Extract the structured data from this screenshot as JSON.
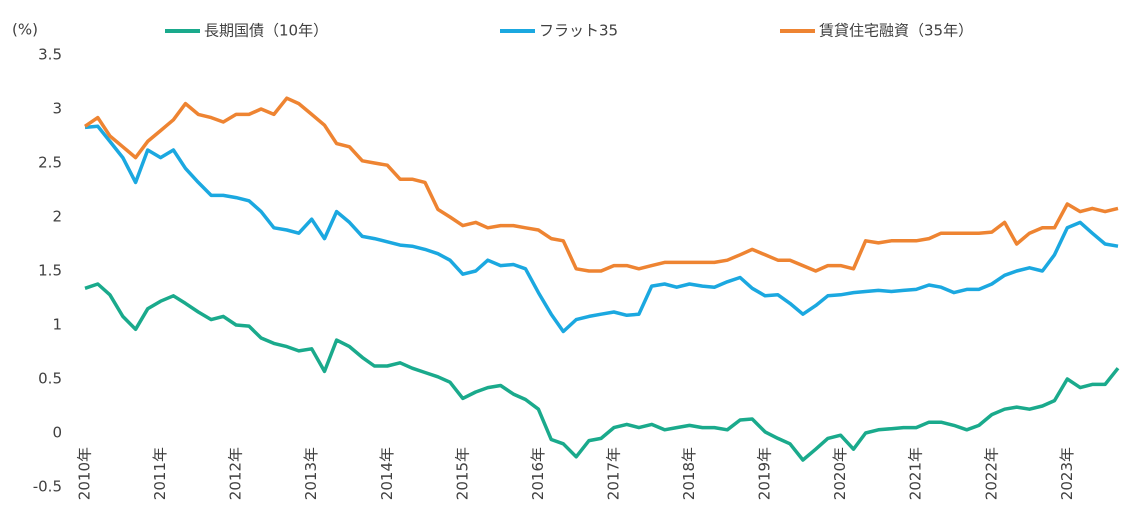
{
  "chart_data": {
    "type": "line",
    "y_label": "(%)",
    "x": [
      2010,
      2010.17,
      2010.33,
      2010.5,
      2010.67,
      2010.83,
      2011,
      2011.17,
      2011.33,
      2011.5,
      2011.67,
      2011.83,
      2012,
      2012.17,
      2012.33,
      2012.5,
      2012.67,
      2012.83,
      2013,
      2013.17,
      2013.33,
      2013.5,
      2013.67,
      2013.83,
      2014,
      2014.17,
      2014.33,
      2014.5,
      2014.67,
      2014.83,
      2015,
      2015.17,
      2015.33,
      2015.5,
      2015.67,
      2015.83,
      2016,
      2016.17,
      2016.33,
      2016.5,
      2016.67,
      2016.83,
      2017,
      2017.17,
      2017.33,
      2017.5,
      2017.67,
      2017.83,
      2018,
      2018.17,
      2018.33,
      2018.5,
      2018.67,
      2018.83,
      2019,
      2019.17,
      2019.33,
      2019.5,
      2019.67,
      2019.83,
      2020,
      2020.17,
      2020.33,
      2020.5,
      2020.67,
      2020.83,
      2021,
      2021.17,
      2021.33,
      2021.5,
      2021.67,
      2021.83,
      2022,
      2022.17,
      2022.33,
      2022.5,
      2022.67,
      2022.83,
      2023,
      2023.17,
      2023.33,
      2023.5,
      2023.67
    ],
    "series": [
      {
        "name": "長期国債（10年）",
        "color": "#1aaa8c",
        "values": [
          1.34,
          1.38,
          1.28,
          1.08,
          0.96,
          1.15,
          1.22,
          1.27,
          1.2,
          1.12,
          1.05,
          1.08,
          1.0,
          0.99,
          0.88,
          0.83,
          0.8,
          0.76,
          0.78,
          0.57,
          0.86,
          0.8,
          0.7,
          0.62,
          0.62,
          0.65,
          0.6,
          0.56,
          0.52,
          0.47,
          0.32,
          0.38,
          0.42,
          0.44,
          0.36,
          0.31,
          0.22,
          -0.06,
          -0.1,
          -0.22,
          -0.07,
          -0.05,
          0.05,
          0.08,
          0.05,
          0.08,
          0.03,
          0.05,
          0.07,
          0.05,
          0.05,
          0.03,
          0.12,
          0.13,
          0.01,
          -0.05,
          -0.1,
          -0.25,
          -0.15,
          -0.05,
          -0.02,
          -0.15,
          0.0,
          0.03,
          0.04,
          0.05,
          0.05,
          0.1,
          0.1,
          0.07,
          0.03,
          0.07,
          0.17,
          0.22,
          0.24,
          0.22,
          0.25,
          0.3,
          0.5,
          0.42,
          0.45,
          0.45,
          0.6
        ]
      },
      {
        "name": "フラット35",
        "color": "#1ba8e0",
        "values": [
          2.83,
          2.84,
          2.7,
          2.55,
          2.32,
          2.62,
          2.55,
          2.62,
          2.45,
          2.32,
          2.2,
          2.2,
          2.18,
          2.15,
          2.05,
          1.9,
          1.88,
          1.85,
          1.98,
          1.8,
          2.05,
          1.95,
          1.82,
          1.8,
          1.77,
          1.74,
          1.73,
          1.7,
          1.66,
          1.6,
          1.47,
          1.5,
          1.6,
          1.55,
          1.56,
          1.52,
          1.3,
          1.1,
          0.94,
          1.05,
          1.08,
          1.1,
          1.12,
          1.09,
          1.1,
          1.36,
          1.38,
          1.35,
          1.38,
          1.36,
          1.35,
          1.4,
          1.44,
          1.34,
          1.27,
          1.28,
          1.2,
          1.1,
          1.18,
          1.27,
          1.28,
          1.3,
          1.31,
          1.32,
          1.31,
          1.32,
          1.33,
          1.37,
          1.35,
          1.3,
          1.33,
          1.33,
          1.38,
          1.46,
          1.5,
          1.53,
          1.5,
          1.65,
          1.9,
          1.95,
          1.85,
          1.75,
          1.73
        ]
      },
      {
        "name": "賃貸住宅融資（35年）",
        "color": "#ee8432",
        "values": [
          2.84,
          2.92,
          2.75,
          2.65,
          2.55,
          2.7,
          2.8,
          2.9,
          3.05,
          2.95,
          2.92,
          2.88,
          2.95,
          2.95,
          3.0,
          2.95,
          3.1,
          3.05,
          2.95,
          2.85,
          2.68,
          2.65,
          2.52,
          2.5,
          2.48,
          2.35,
          2.35,
          2.32,
          2.07,
          2.0,
          1.92,
          1.95,
          1.9,
          1.92,
          1.92,
          1.9,
          1.88,
          1.8,
          1.78,
          1.52,
          1.5,
          1.5,
          1.55,
          1.55,
          1.52,
          1.55,
          1.58,
          1.58,
          1.58,
          1.58,
          1.58,
          1.6,
          1.65,
          1.7,
          1.65,
          1.6,
          1.6,
          1.55,
          1.5,
          1.55,
          1.55,
          1.52,
          1.78,
          1.76,
          1.78,
          1.78,
          1.78,
          1.8,
          1.85,
          1.85,
          1.85,
          1.85,
          1.86,
          1.95,
          1.75,
          1.85,
          1.9,
          1.9,
          2.12,
          2.05,
          2.08,
          2.05,
          2.08
        ]
      }
    ],
    "xlim": [
      2010,
      2023.75
    ],
    "xticks": [
      {
        "value": 2010,
        "label": "2010年"
      },
      {
        "value": 2011,
        "label": "2011年"
      },
      {
        "value": 2012,
        "label": "2012年"
      },
      {
        "value": 2013,
        "label": "2013年"
      },
      {
        "value": 2014,
        "label": "2014年"
      },
      {
        "value": 2015,
        "label": "2015年"
      },
      {
        "value": 2016,
        "label": "2016年"
      },
      {
        "value": 2017,
        "label": "2017年"
      },
      {
        "value": 2018,
        "label": "2018年"
      },
      {
        "value": 2019,
        "label": "2019年"
      },
      {
        "value": 2020,
        "label": "2020年"
      },
      {
        "value": 2021,
        "label": "2021年"
      },
      {
        "value": 2022,
        "label": "2022年"
      },
      {
        "value": 2023,
        "label": "2023年"
      }
    ],
    "ylim": [
      -0.5,
      3.5
    ],
    "yticks": [
      3.5,
      3,
      2.5,
      2,
      1.5,
      1,
      0.5,
      0,
      -0.5
    ],
    "grid": false,
    "legend": "top"
  }
}
